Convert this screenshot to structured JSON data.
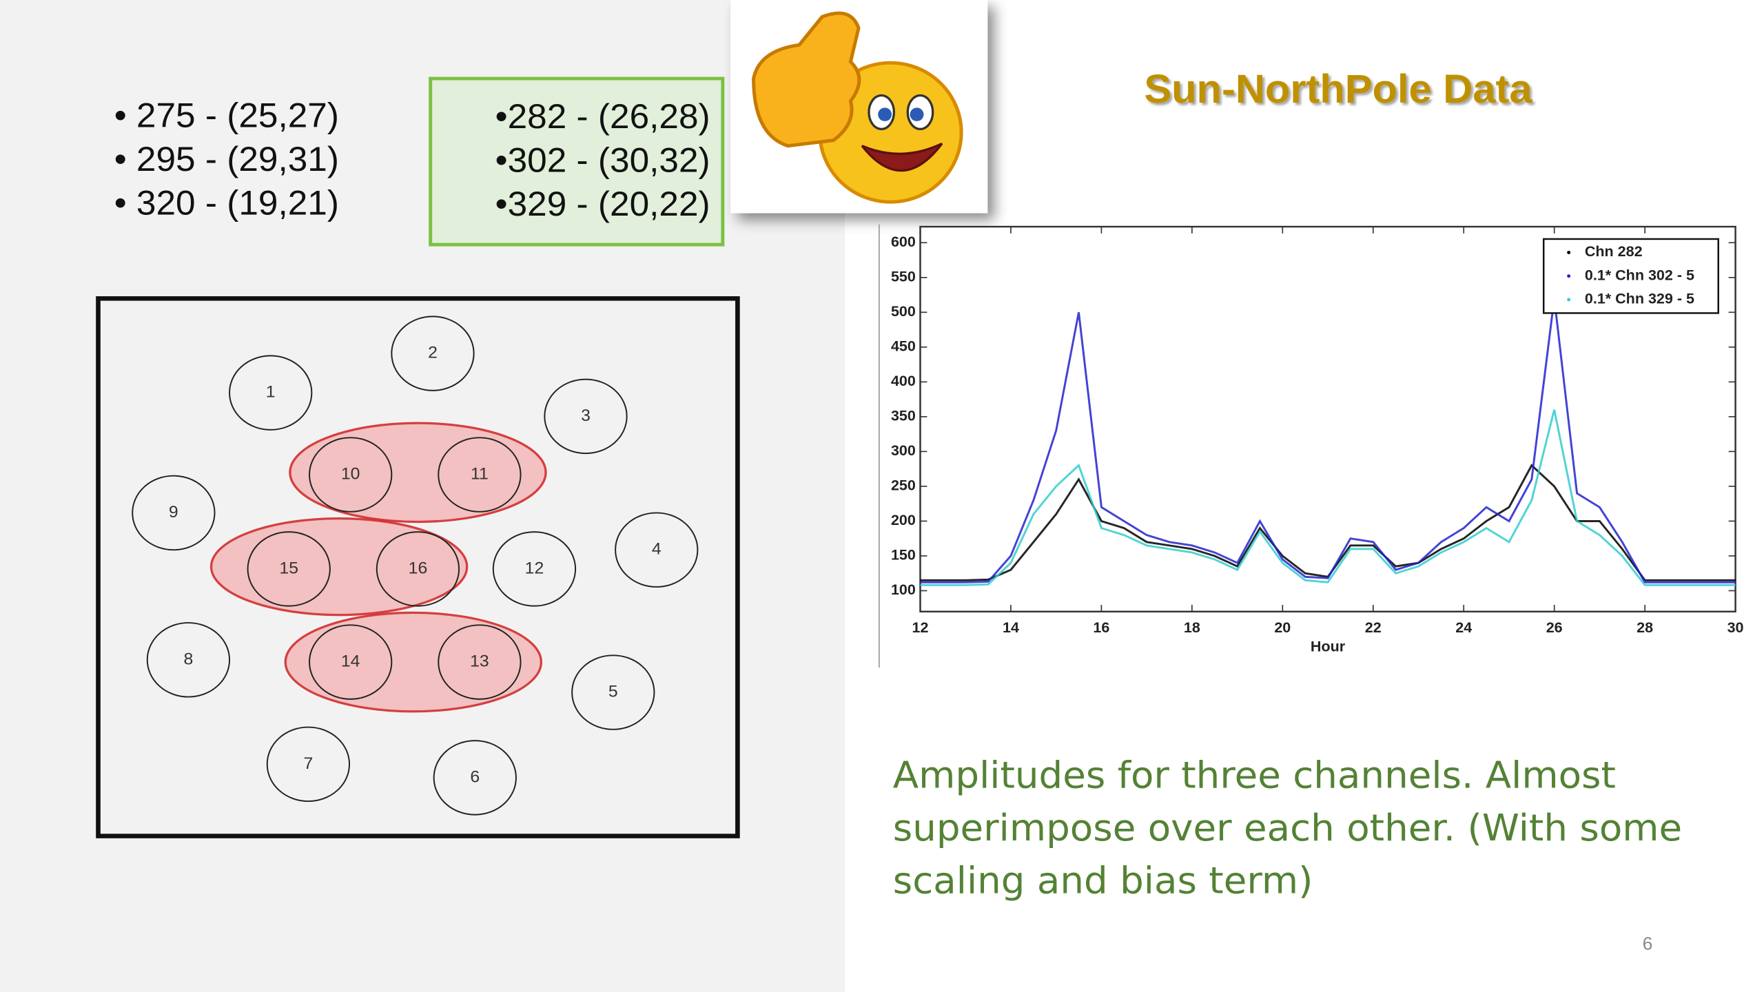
{
  "left_list": [
    "• 275 - (25,27)",
    "• 295 - (29,31)",
    "• 320 - (19,21)"
  ],
  "box_list": [
    "•282 - (26,28)",
    "•302 - (30,32)",
    "•329 - (20,22)"
  ],
  "title": "Sun-NorthPole Data",
  "caption": [
    "Amplitudes for three channels. Almost",
    "superimpose over each other. (With some",
    "scaling and bias term)"
  ],
  "page_number": "6",
  "diagram": {
    "nodes": [
      "1",
      "2",
      "3",
      "4",
      "5",
      "6",
      "7",
      "8",
      "9",
      "10",
      "11",
      "12",
      "13",
      "14",
      "15",
      "16"
    ]
  },
  "chart_data": {
    "type": "line",
    "xlabel": "Hour",
    "xlim": [
      12,
      30
    ],
    "xticks": [
      12,
      14,
      16,
      18,
      20,
      22,
      24,
      26,
      28,
      30
    ],
    "ylim": [
      70,
      623
    ],
    "yticks": [
      100,
      150,
      200,
      250,
      300,
      350,
      400,
      450,
      500,
      550,
      600
    ],
    "legend": "upper right",
    "x": [
      12,
      12.5,
      13,
      13.5,
      14,
      14.5,
      15,
      15.5,
      16,
      16.5,
      17,
      17.5,
      18,
      18.5,
      19,
      19.5,
      20,
      20.5,
      21,
      21.5,
      22,
      22.5,
      23,
      23.5,
      24,
      24.5,
      25,
      25.5,
      26,
      26.5,
      27,
      27.5,
      28,
      28.5,
      29,
      29.5,
      30
    ],
    "series": [
      {
        "name": "Chn 282",
        "color": "#000000",
        "values": [
          115,
          115,
          115,
          116,
          130,
          170,
          210,
          260,
          200,
          190,
          170,
          165,
          160,
          150,
          135,
          190,
          150,
          125,
          120,
          165,
          165,
          135,
          140,
          160,
          175,
          200,
          220,
          280,
          250,
          200,
          200,
          160,
          115,
          115,
          115,
          115,
          115
        ]
      },
      {
        "name": "0.1* Chn 302 - 5",
        "color": "#2222cc",
        "values": [
          112,
          112,
          112,
          113,
          150,
          230,
          330,
          500,
          220,
          200,
          180,
          170,
          165,
          155,
          140,
          200,
          145,
          120,
          118,
          175,
          170,
          130,
          140,
          170,
          190,
          220,
          200,
          260,
          520,
          240,
          220,
          170,
          112,
          112,
          112,
          112,
          112
        ]
      },
      {
        "name": "0.1* Chn 329 - 5",
        "color": "#33cccc",
        "values": [
          108,
          108,
          108,
          109,
          140,
          210,
          250,
          280,
          190,
          180,
          165,
          160,
          155,
          145,
          130,
          185,
          140,
          115,
          112,
          160,
          160,
          125,
          135,
          155,
          170,
          190,
          170,
          230,
          360,
          200,
          180,
          150,
          108,
          108,
          108,
          108,
          108
        ]
      }
    ]
  }
}
